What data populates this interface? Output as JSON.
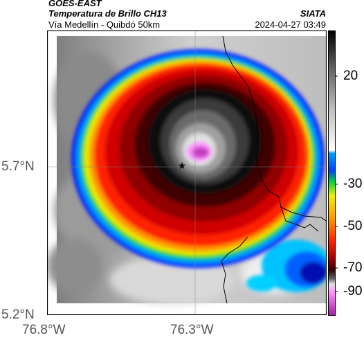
{
  "header": {
    "satellite": "GOES-EAST",
    "product": "Temperatura de Brillo CH13",
    "route": "Vía Medellín - Quibdó 50km",
    "org": "SIATA",
    "timestamp": "2024-04-27 03:49"
  },
  "map": {
    "lat_ticks": [
      "5.7°N",
      "5.2°N"
    ],
    "lon_ticks": [
      "76.8°W",
      "76.3°W"
    ],
    "marker_icon": "star-icon"
  },
  "colorbar": {
    "ticks": [
      "20",
      "-30",
      "-50",
      "-70",
      "-90"
    ],
    "range": [
      -95,
      35
    ]
  }
}
